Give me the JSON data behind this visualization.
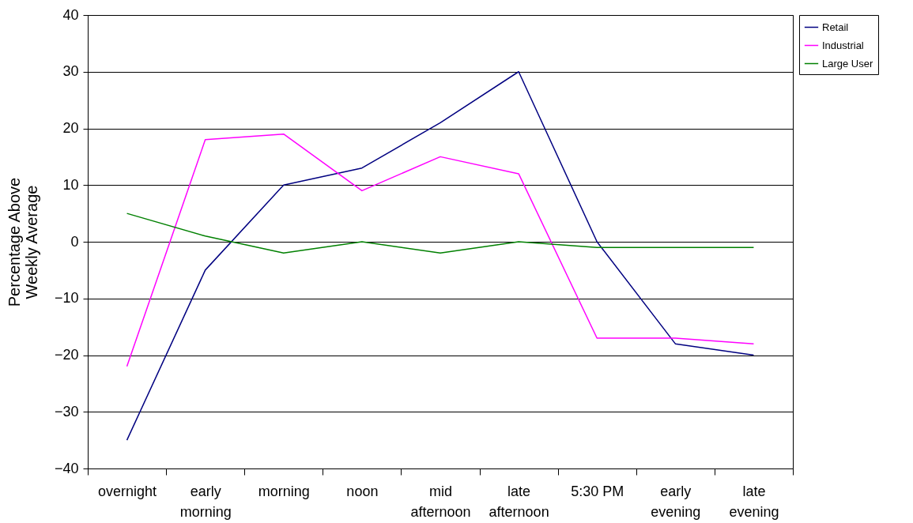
{
  "chart_data": {
    "type": "line",
    "ylabel": "Percentage Above Weekly Average",
    "categories": [
      "overnight",
      "early morning",
      "morning",
      "noon",
      "mid afternoon",
      "late afternoon",
      "5:30 PM",
      "early evening",
      "late evening"
    ],
    "series": [
      {
        "name": "Retail",
        "color": "#000080",
        "values": [
          -35,
          -5,
          10,
          13,
          21,
          30,
          0,
          -18,
          -20
        ]
      },
      {
        "name": "Industrial",
        "color": "#ff00ff",
        "values": [
          -22,
          18,
          19,
          9,
          15,
          12,
          -17,
          -17,
          -18
        ]
      },
      {
        "name": "Large User",
        "color": "#008000",
        "values": [
          5,
          1,
          -2,
          0,
          -2,
          0,
          -1,
          -1,
          -1
        ]
      }
    ],
    "ylim": [
      -40,
      40
    ],
    "yticks": [
      -40,
      -30,
      -20,
      -10,
      0,
      10,
      20,
      30,
      40
    ],
    "grid": "y",
    "legend": "right",
    "line_style": "solid",
    "marker": "none"
  }
}
